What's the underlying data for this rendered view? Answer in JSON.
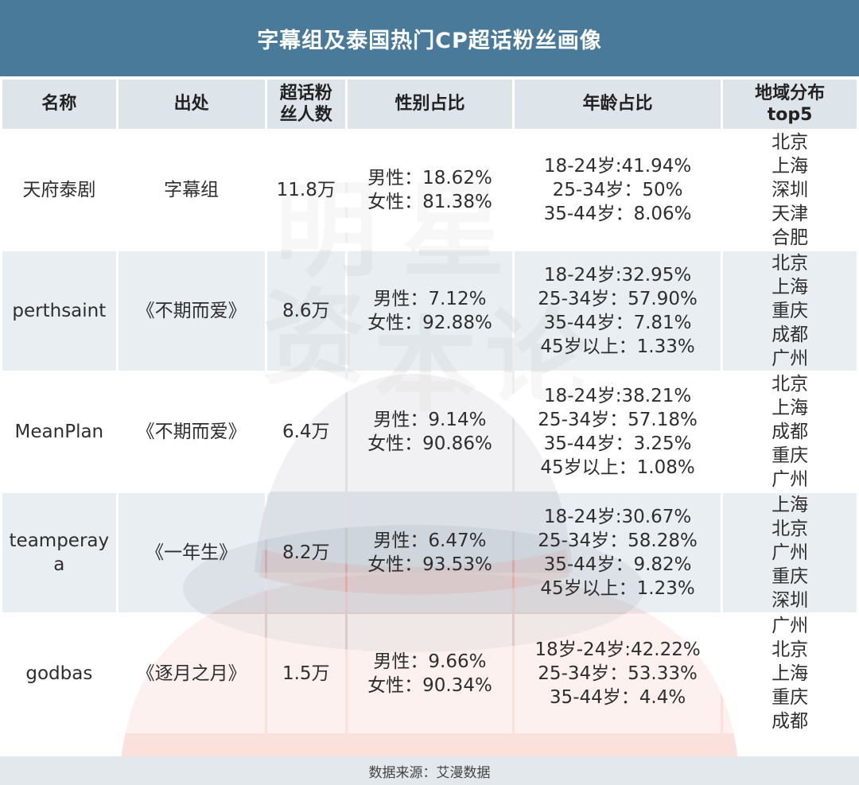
{
  "title": "字幕组及泰国热门CP超话粉丝画像",
  "watermark": {
    "chars": [
      "明",
      "星",
      "资",
      "本",
      "论"
    ]
  },
  "headers": {
    "name": "名称",
    "source": "出处",
    "fans": "超话粉丝人数",
    "gender": "性别占比",
    "age": "年龄占比",
    "region": "地域分布top5"
  },
  "rows": [
    {
      "name": "天府泰剧",
      "source": "字幕组",
      "fans": "11.8万",
      "gender": [
        "男性：18.62%",
        "女性：81.38%"
      ],
      "age": [
        "18-24岁:41.94%",
        "25-34岁：50%",
        "35-44岁：8.06%"
      ],
      "region": [
        "北京",
        "上海",
        "深圳",
        "天津",
        "合肥"
      ]
    },
    {
      "name": "perthsaint",
      "source": "《不期而爱》",
      "fans": "8.6万",
      "gender": [
        "男性：7.12%",
        "女性：92.88%"
      ],
      "age": [
        "18-24岁:32.95%",
        "25-34岁：57.90%",
        "35-44岁：7.81%",
        "45岁以上：1.33%"
      ],
      "region": [
        "北京",
        "上海",
        "重庆",
        "成都",
        "广州"
      ]
    },
    {
      "name": "MeanPlan",
      "source": "《不期而爱》",
      "fans": "6.4万",
      "gender": [
        "男性：9.14%",
        "女性：90.86%"
      ],
      "age": [
        "18-24岁:38.21%",
        "25-34岁：57.18%",
        "35-44岁：3.25%",
        "45岁以上：1.08%"
      ],
      "region": [
        "北京",
        "上海",
        "成都",
        "重庆",
        "广州"
      ]
    },
    {
      "name": "teamperaya",
      "source": "《一年生》",
      "fans": "8.2万",
      "gender": [
        "男性：6.47%",
        "女性：93.53%"
      ],
      "age": [
        "18-24岁:30.67%",
        "25-34岁：58.28%",
        "35-44岁：9.82%",
        "45岁以上：1.23%"
      ],
      "region": [
        "上海",
        "北京",
        "广州",
        "重庆",
        "深圳"
      ]
    },
    {
      "name": "godbas",
      "source": "《逐月之月》",
      "fans": "1.5万",
      "gender": [
        "男性：9.66%",
        "女性：90.34%"
      ],
      "age": [
        "18岁-24岁:42.22%",
        "25-34岁：53.33%",
        "35-44岁：4.4%"
      ],
      "region": [
        "广州",
        "北京",
        "上海",
        "重庆",
        "成都"
      ]
    }
  ],
  "footer": "数据来源：艾漫数据",
  "colors": {
    "title_bg": "#4a7a99",
    "header_bg": "#dde4ea",
    "stripe": "#d6e0e8"
  }
}
